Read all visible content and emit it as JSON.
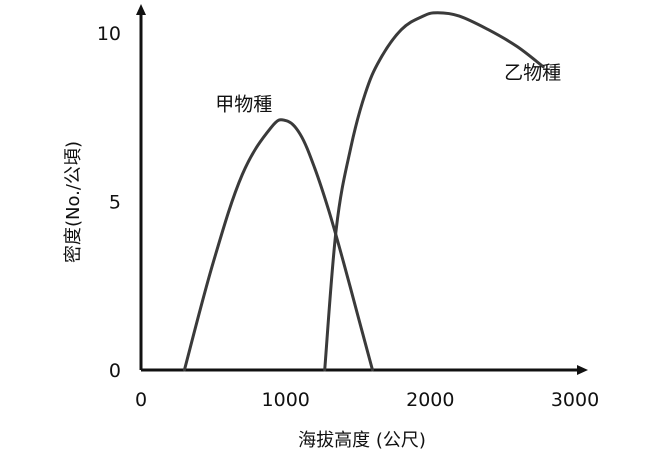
{
  "chart_data": {
    "type": "line",
    "title": "",
    "xlabel": "海拔高度 (公尺)",
    "ylabel": "密度(No./公頃)",
    "xlim": [
      0,
      3000
    ],
    "ylim": [
      0,
      10
    ],
    "x_ticks": [
      "0",
      "1000",
      "2000",
      "3000"
    ],
    "y_ticks": [
      "0",
      "5",
      "10"
    ],
    "grid": false,
    "legend": "none",
    "series": [
      {
        "name": "甲物種",
        "color": "#3a3a3a",
        "x": [
          300,
          500,
          700,
          900,
          1000,
          1100,
          1200,
          1300,
          1400,
          1500,
          1600
        ],
        "y": [
          0,
          3.2,
          5.8,
          7.2,
          7.4,
          7.0,
          6.0,
          4.7,
          3.2,
          1.6,
          0
        ]
      },
      {
        "name": "乙物種",
        "color": "#3a3a3a",
        "x": [
          1270,
          1350,
          1450,
          1550,
          1650,
          1800,
          1950,
          2050,
          2200,
          2400,
          2600,
          2780
        ],
        "y": [
          0,
          4.2,
          6.6,
          8.2,
          9.2,
          10.1,
          10.5,
          10.6,
          10.5,
          10.1,
          9.6,
          9.0
        ]
      }
    ]
  }
}
